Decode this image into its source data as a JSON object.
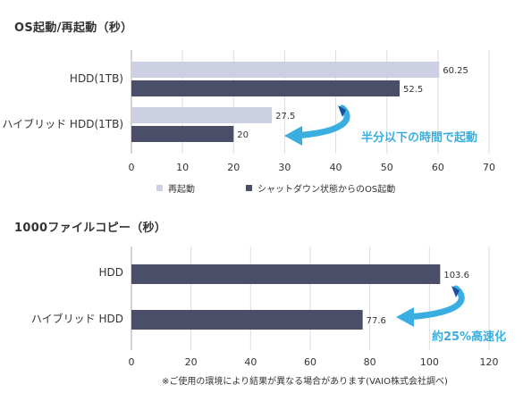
{
  "colors": {
    "restart": "#cdd0e3",
    "boot": "#4a4e69",
    "copy": "#4a4e69",
    "callout": "#3aaee0",
    "grid": "#dddddd",
    "axis": "#aaaaaa"
  },
  "chart_data": [
    {
      "type": "bar",
      "orientation": "horizontal",
      "title": "OS起動/再起動（秒）",
      "categories": [
        "HDD(1TB)",
        "ハイブリッド HDD(1TB)"
      ],
      "series": [
        {
          "name": "再起動",
          "values": [
            60.25,
            27.5
          ]
        },
        {
          "name": "シャットダウン状態からのOS起動",
          "values": [
            52.5,
            20
          ]
        }
      ],
      "data_labels": [
        [
          "60.25",
          "27.5"
        ],
        [
          "52.5",
          "20"
        ]
      ],
      "xlim": [
        0,
        70
      ],
      "xticks": [
        "0",
        "10",
        "20",
        "30",
        "40",
        "50",
        "60",
        "70"
      ],
      "grid": true,
      "legend": "bottom",
      "annotation": "半分以下の時間で起動"
    },
    {
      "type": "bar",
      "orientation": "horizontal",
      "title": "1000ファイルコピー（秒）",
      "categories": [
        "HDD",
        "ハイブリッド HDD"
      ],
      "series": [
        {
          "values": [
            103.6,
            77.6
          ]
        }
      ],
      "data_labels": [
        [
          "103.6",
          "77.6"
        ]
      ],
      "xlim": [
        0,
        120
      ],
      "xticks": [
        "0",
        "20",
        "40",
        "60",
        "80",
        "100",
        "120"
      ],
      "grid": true,
      "annotation": "約25%高速化"
    }
  ],
  "footnote": "※ご使用の環境により結果が異なる場合があります(VAIO株式会社調べ)"
}
